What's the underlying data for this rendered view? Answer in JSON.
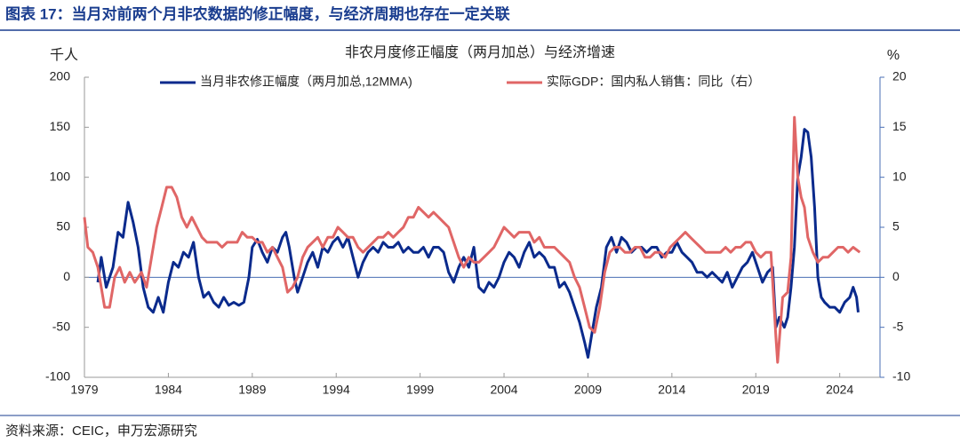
{
  "chart_data": {
    "type": "line",
    "header": "图表 17：当月对前两个月非农数据的修正幅度，与经济周期也存在一定关联",
    "title": "非农月度修正幅度（两月加总）与经济增速",
    "ylabel": "千人",
    "y2label": "%",
    "source": "资料来源：CEIC，申万宏源研究",
    "xlim": [
      1979,
      2026.4
    ],
    "xticks": [
      1979,
      1984,
      1989,
      1994,
      1999,
      2004,
      2009,
      2014,
      2019,
      2024
    ],
    "ylim": [
      -100,
      200
    ],
    "yticks": [
      -100,
      -50,
      0,
      50,
      100,
      150,
      200
    ],
    "y2lim": [
      -10,
      20
    ],
    "y2ticks": [
      -10,
      -5,
      0,
      5,
      10,
      15,
      20
    ],
    "series": [
      {
        "name": "当月非农修正幅度（两月加总,12MMA)",
        "color": "#0a2a8c",
        "x": [
          1979.8,
          1980.0,
          1980.3,
          1980.7,
          1981.0,
          1981.3,
          1981.6,
          1981.9,
          1982.2,
          1982.5,
          1982.8,
          1983.1,
          1983.4,
          1983.7,
          1984.0,
          1984.3,
          1984.6,
          1984.9,
          1985.2,
          1985.5,
          1985.8,
          1986.1,
          1986.4,
          1986.7,
          1987.0,
          1987.3,
          1987.6,
          1987.9,
          1988.2,
          1988.5,
          1988.8,
          1989.0,
          1989.3,
          1989.6,
          1989.9,
          1990.2,
          1990.5,
          1990.8,
          1991.0,
          1991.2,
          1991.5,
          1991.7,
          1992.0,
          1992.3,
          1992.6,
          1992.9,
          1993.2,
          1993.5,
          1993.8,
          1994.1,
          1994.4,
          1994.7,
          1995.0,
          1995.3,
          1995.6,
          1995.9,
          1996.2,
          1996.5,
          1996.8,
          1997.1,
          1997.4,
          1997.7,
          1998.0,
          1998.3,
          1998.6,
          1998.9,
          1999.2,
          1999.5,
          1999.8,
          2000.1,
          2000.4,
          2000.7,
          2001.0,
          2001.3,
          2001.6,
          2001.9,
          2002.2,
          2002.5,
          2002.8,
          2003.1,
          2003.4,
          2003.7,
          2004.0,
          2004.3,
          2004.6,
          2004.9,
          2005.2,
          2005.5,
          2005.8,
          2006.1,
          2006.4,
          2006.7,
          2007.0,
          2007.3,
          2007.6,
          2007.9,
          2008.2,
          2008.5,
          2008.8,
          2009.0,
          2009.2,
          2009.5,
          2009.8,
          2010.1,
          2010.4,
          2010.7,
          2011.0,
          2011.3,
          2011.6,
          2011.9,
          2012.2,
          2012.5,
          2012.8,
          2013.1,
          2013.4,
          2013.7,
          2014.0,
          2014.3,
          2014.6,
          2014.9,
          2015.2,
          2015.5,
          2015.8,
          2016.1,
          2016.4,
          2016.7,
          2017.0,
          2017.3,
          2017.6,
          2017.9,
          2018.2,
          2018.5,
          2018.8,
          2019.1,
          2019.4,
          2019.7,
          2020.0,
          2020.2,
          2020.4,
          2020.7,
          2020.9,
          2021.1,
          2021.3,
          2021.5,
          2021.7,
          2021.9,
          2022.1,
          2022.3,
          2022.5,
          2022.7,
          2022.9,
          2023.1,
          2023.4,
          2023.7,
          2024.0,
          2024.3,
          2024.6,
          2024.8,
          2025.0,
          2025.1
        ],
        "values": [
          -5,
          20,
          -10,
          10,
          45,
          40,
          75,
          55,
          30,
          -10,
          -30,
          -35,
          -20,
          -35,
          -5,
          15,
          10,
          25,
          20,
          35,
          0,
          -20,
          -15,
          -25,
          -30,
          -20,
          -28,
          -25,
          -28,
          -25,
          0,
          30,
          38,
          25,
          15,
          30,
          25,
          40,
          45,
          30,
          0,
          -15,
          0,
          15,
          25,
          10,
          30,
          25,
          35,
          40,
          30,
          40,
          20,
          0,
          15,
          25,
          30,
          25,
          35,
          30,
          30,
          35,
          25,
          30,
          25,
          25,
          30,
          20,
          30,
          30,
          25,
          5,
          -5,
          10,
          20,
          10,
          30,
          -10,
          -15,
          -5,
          -10,
          0,
          15,
          25,
          20,
          10,
          25,
          35,
          20,
          25,
          20,
          10,
          10,
          -10,
          -5,
          -15,
          -30,
          -45,
          -65,
          -80,
          -60,
          -30,
          -10,
          30,
          40,
          25,
          40,
          35,
          25,
          30,
          30,
          25,
          30,
          30,
          20,
          25,
          25,
          35,
          25,
          20,
          15,
          5,
          5,
          0,
          5,
          0,
          -5,
          5,
          -10,
          0,
          10,
          15,
          25,
          10,
          -5,
          5,
          10,
          -50,
          -40,
          -50,
          -40,
          -10,
          30,
          100,
          120,
          148,
          145,
          120,
          70,
          0,
          -20,
          -25,
          -30,
          -30,
          -35,
          -25,
          -20,
          -10,
          -20,
          -35
        ]
      },
      {
        "name": "实际GDP：国内私人销售：同比（右）",
        "color": "#e06666",
        "axis": "y2",
        "x": [
          1979.0,
          1979.2,
          1979.5,
          1979.8,
          1980.2,
          1980.5,
          1980.8,
          1981.1,
          1981.4,
          1981.7,
          1982.0,
          1982.4,
          1982.7,
          1983.0,
          1983.3,
          1983.6,
          1983.9,
          1984.2,
          1984.5,
          1984.8,
          1985.1,
          1985.4,
          1985.7,
          1986.0,
          1986.3,
          1986.6,
          1986.9,
          1987.2,
          1987.5,
          1987.8,
          1988.1,
          1988.4,
          1988.7,
          1989.0,
          1989.3,
          1989.6,
          1989.9,
          1990.2,
          1990.5,
          1990.8,
          1991.1,
          1991.4,
          1991.7,
          1992.0,
          1992.3,
          1992.6,
          1992.9,
          1993.2,
          1993.5,
          1993.8,
          1994.1,
          1994.4,
          1994.7,
          1995.0,
          1995.3,
          1995.6,
          1995.9,
          1996.2,
          1996.5,
          1996.8,
          1997.1,
          1997.4,
          1997.7,
          1998.0,
          1998.3,
          1998.6,
          1998.9,
          1999.2,
          1999.5,
          1999.8,
          2000.1,
          2000.4,
          2000.7,
          2001.0,
          2001.3,
          2001.6,
          2001.9,
          2002.2,
          2002.5,
          2002.8,
          2003.1,
          2003.4,
          2003.7,
          2004.0,
          2004.3,
          2004.6,
          2004.9,
          2005.2,
          2005.5,
          2005.8,
          2006.1,
          2006.4,
          2006.7,
          2007.0,
          2007.3,
          2007.6,
          2007.9,
          2008.2,
          2008.5,
          2008.8,
          2009.1,
          2009.4,
          2009.7,
          2010.0,
          2010.3,
          2010.6,
          2010.9,
          2011.2,
          2011.5,
          2011.8,
          2012.1,
          2012.4,
          2012.7,
          2013.0,
          2013.3,
          2013.6,
          2013.9,
          2014.2,
          2014.5,
          2014.8,
          2015.1,
          2015.4,
          2015.7,
          2016.0,
          2016.3,
          2016.6,
          2016.9,
          2017.2,
          2017.5,
          2017.8,
          2018.1,
          2018.4,
          2018.7,
          2019.0,
          2019.3,
          2019.6,
          2019.9,
          2020.2,
          2020.3,
          2020.6,
          2020.9,
          2021.1,
          2021.3,
          2021.5,
          2021.7,
          2021.9,
          2022.1,
          2022.4,
          2022.7,
          2023.0,
          2023.3,
          2023.6,
          2023.9,
          2024.2,
          2024.5,
          2024.8,
          2025.2
        ],
        "values": [
          6,
          3,
          2.5,
          1,
          -3,
          -3,
          0,
          1,
          -0.5,
          0.5,
          -0.5,
          0.5,
          -1,
          2,
          5,
          7,
          9,
          9,
          8,
          6,
          5,
          6,
          5,
          4,
          3.5,
          3.5,
          3.5,
          3,
          3.5,
          3.5,
          3.5,
          4.5,
          4,
          4,
          3.5,
          3.5,
          2.5,
          3,
          2,
          1,
          -1.5,
          -1,
          0,
          2,
          3,
          3.5,
          4,
          3,
          4,
          4,
          5,
          4.5,
          4,
          4,
          3,
          2.5,
          3,
          3.5,
          4,
          4,
          4.5,
          4,
          4.5,
          5,
          6,
          6,
          7,
          6.5,
          6,
          6.5,
          6,
          5.5,
          5,
          3.5,
          2,
          1,
          2,
          1.5,
          1.5,
          2,
          2.5,
          3,
          4,
          5,
          4.5,
          4,
          4.5,
          4.5,
          4.5,
          3.5,
          4,
          3,
          3,
          3,
          2.5,
          2,
          1.5,
          0,
          -1,
          -3,
          -5,
          -5.5,
          -3,
          0.5,
          2.5,
          3,
          3,
          2.5,
          2.5,
          3,
          3,
          2,
          2,
          2.5,
          2.5,
          2,
          3,
          3.5,
          4,
          4.5,
          4,
          3.5,
          3,
          2.5,
          2.5,
          2.5,
          2.5,
          3,
          2.5,
          3,
          3,
          3.5,
          3.5,
          2.5,
          2,
          2.5,
          2.5,
          -6,
          -8.5,
          -2,
          -1.5,
          2,
          16,
          10,
          8,
          7,
          4,
          2.5,
          1.5,
          2,
          2,
          2.5,
          3,
          3,
          2.5,
          3,
          2.5
        ]
      }
    ]
  }
}
